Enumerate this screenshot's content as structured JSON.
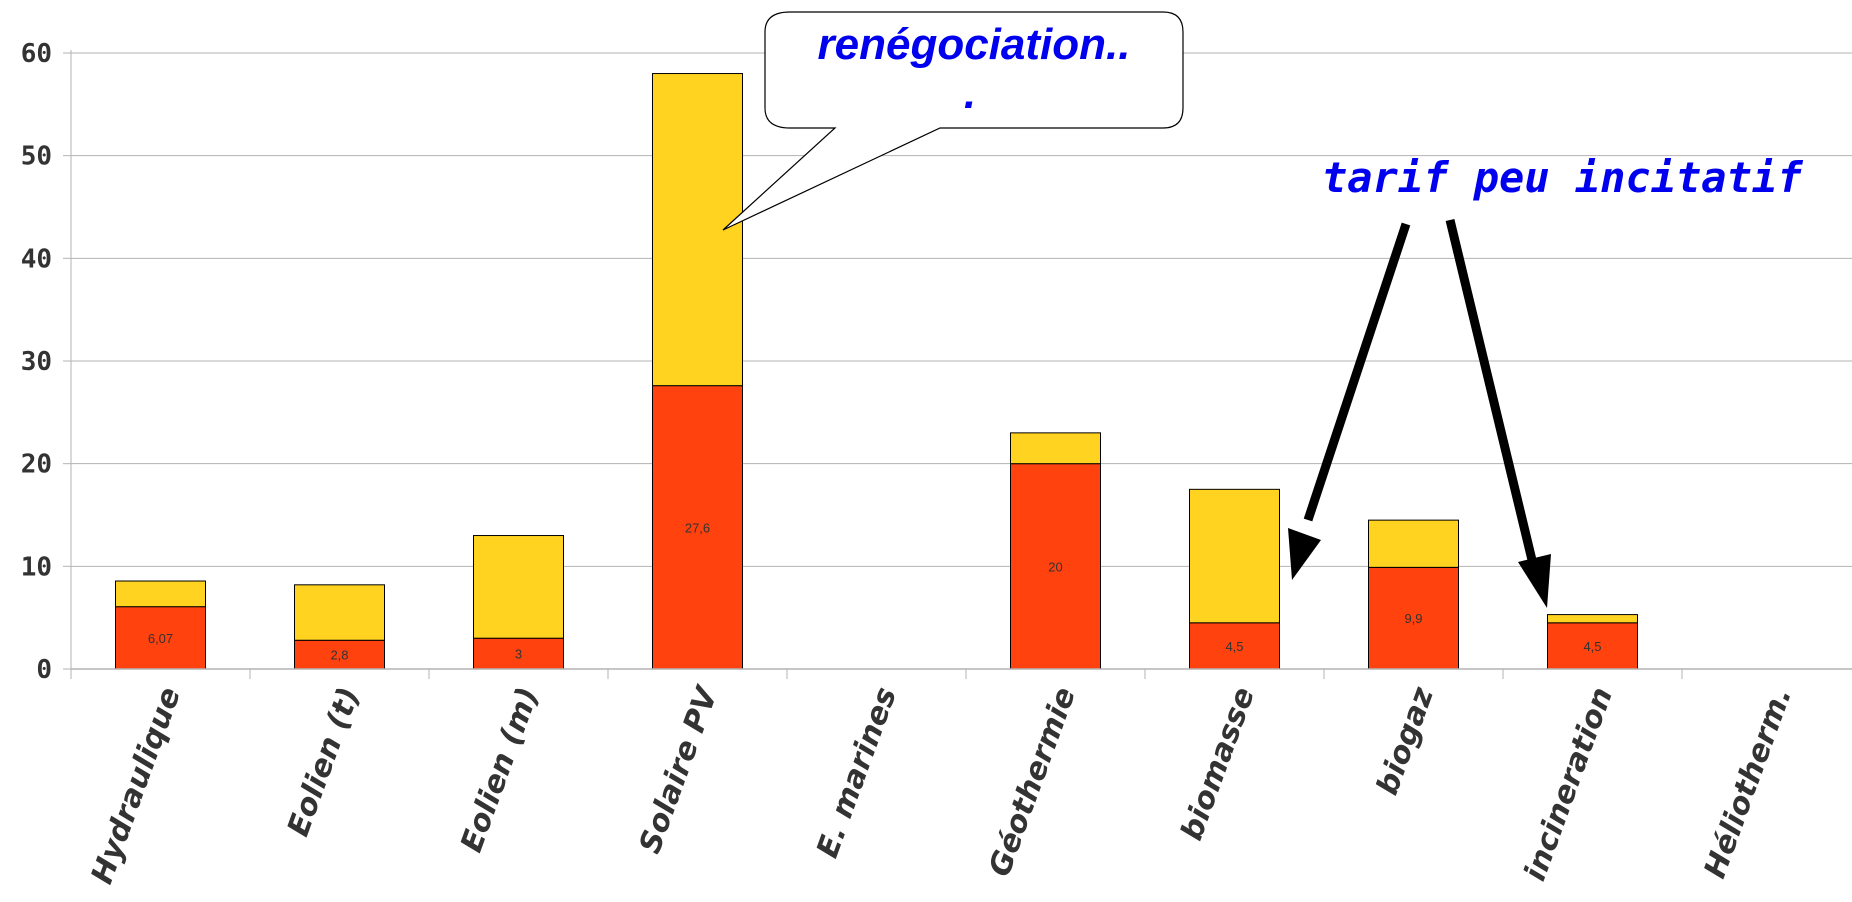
{
  "chart_data": {
    "type": "bar",
    "stacked": true,
    "categories": [
      "Hydraulique",
      "Eolien (t)",
      "Eolien (m)",
      "Solaire PV",
      "E. marines",
      "Géothermie",
      "biomasse",
      "biogaz",
      "incineration",
      "Héliotherm."
    ],
    "series": [
      {
        "values": [
          6.07,
          2.8,
          3,
          27.6,
          null,
          20,
          4.5,
          9.9,
          4.5,
          null
        ],
        "color": "#ff420e"
      },
      {
        "values": [
          2.5,
          5.4,
          10,
          30.4,
          null,
          3,
          13,
          4.6,
          0.8,
          null
        ],
        "color": "#ffd320"
      }
    ],
    "data_labels": [
      "6,07",
      "2,8",
      "3",
      "27,6",
      "",
      "20",
      "4,5",
      "9,9",
      "4,5",
      ""
    ],
    "yticks": [
      "0",
      "10",
      "20",
      "30",
      "40",
      "50",
      "60"
    ],
    "ylim": [
      0,
      60
    ],
    "grid": true,
    "title": "",
    "xlabel": "",
    "ylabel": "",
    "annotations": {
      "callout": {
        "lines": [
          "renégociation..",
          "."
        ],
        "target_category": "Solaire PV"
      },
      "arrow_note": {
        "text": "tarif peu incitatif",
        "target_categories": [
          "biomasse",
          "incineration"
        ]
      }
    }
  }
}
